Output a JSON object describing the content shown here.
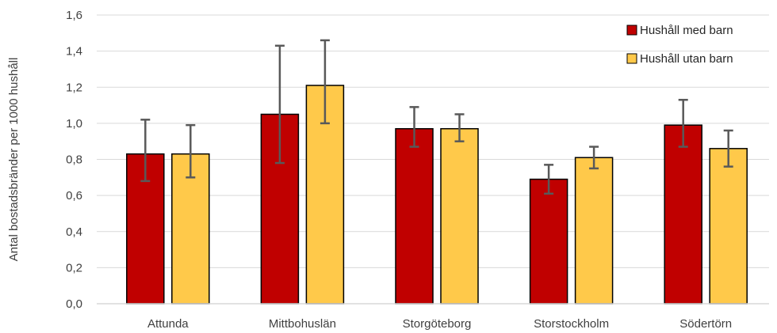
{
  "chart_data": {
    "type": "bar",
    "title": "",
    "xlabel": "",
    "ylabel": "Antal bostadsbränder per 1000 hushåll",
    "ylim": [
      0,
      1.6
    ],
    "y_ticks": [
      "0,0",
      "0,2",
      "0,4",
      "0,6",
      "0,8",
      "1,0",
      "1,2",
      "1,4",
      "1,6"
    ],
    "y_tick_values": [
      0,
      0.2,
      0.4,
      0.6,
      0.8,
      1.0,
      1.2,
      1.4,
      1.6
    ],
    "grid": true,
    "legend_position": "top-right",
    "categories": [
      "Attunda",
      "Mittbohuslän",
      "Storgöteborg",
      "Storstockholm",
      "Södertörn"
    ],
    "series": [
      {
        "name": "Hushåll med barn",
        "color": "#c00000",
        "values": [
          0.83,
          1.05,
          0.97,
          0.69,
          0.99
        ],
        "err_low": [
          0.68,
          0.78,
          0.87,
          0.61,
          0.87
        ],
        "err_high": [
          1.02,
          1.43,
          1.09,
          0.77,
          1.13
        ]
      },
      {
        "name": "Hushåll utan barn",
        "color": "#ffc94a",
        "values": [
          0.83,
          1.21,
          0.97,
          0.81,
          0.86
        ],
        "err_low": [
          0.7,
          1.0,
          0.9,
          0.75,
          0.76
        ],
        "err_high": [
          0.99,
          1.46,
          1.05,
          0.87,
          0.96
        ]
      }
    ]
  }
}
